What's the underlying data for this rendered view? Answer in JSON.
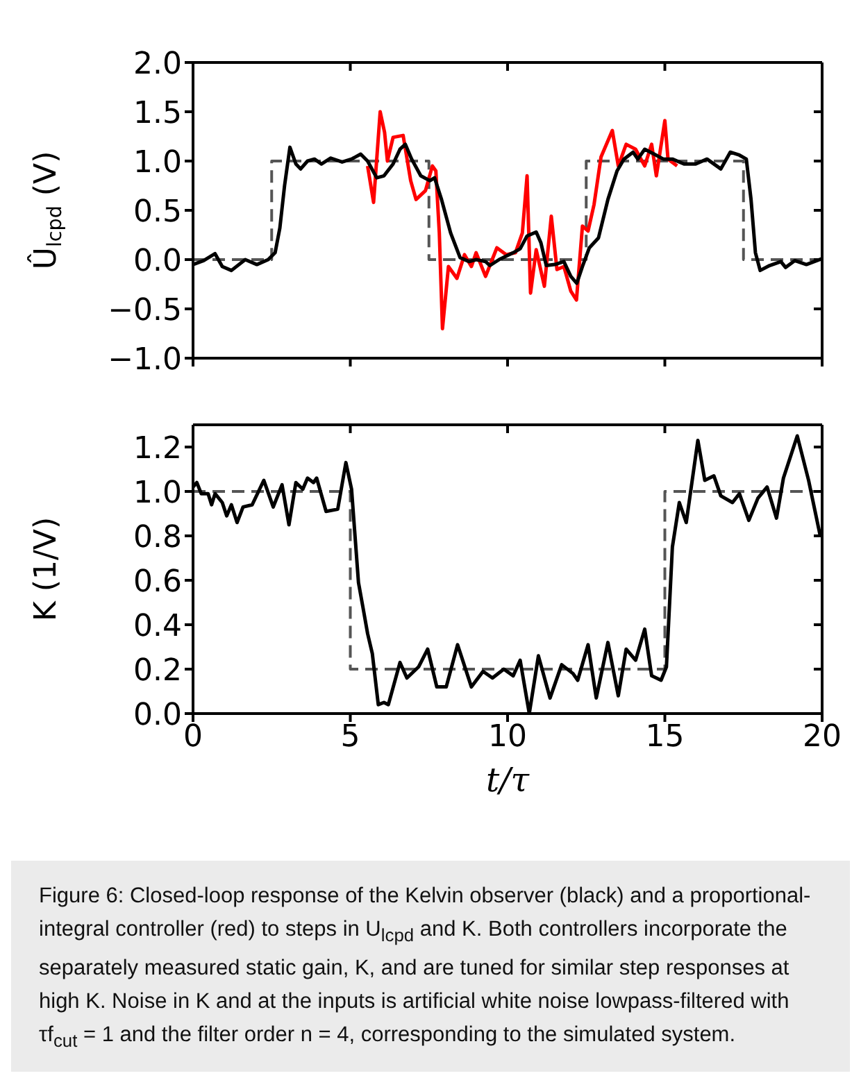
{
  "chart_data": [
    {
      "type": "line",
      "ylabel": "Û$_{lcpd}$ (V)",
      "xlim": [
        0,
        20
      ],
      "xticks": [
        {
          "value": 0,
          "label": null
        },
        {
          "value": 5,
          "label": null
        },
        {
          "value": 10,
          "label": null
        },
        {
          "value": 15,
          "label": null
        },
        {
          "value": 20,
          "label": null
        }
      ],
      "ylim": [
        -1,
        2
      ],
      "yticks": [
        {
          "value": -1,
          "label": "−1.0"
        },
        {
          "value": -0.5,
          "label": "−0.5"
        },
        {
          "value": 0,
          "label": "0.0"
        },
        {
          "value": 0.5,
          "label": "0.5"
        },
        {
          "value": 1,
          "label": "1.0"
        },
        {
          "value": 1.5,
          "label": "1.5"
        },
        {
          "value": 2,
          "label": "2.0"
        }
      ],
      "tick_labels": "y",
      "series": [
        {
          "type": "step",
          "color": "#555555",
          "line_style": "dashed",
          "x": [
            0,
            2.5,
            7.5,
            12.5,
            17.5,
            20
          ],
          "values": [
            0,
            1,
            0,
            1,
            0,
            0
          ]
        },
        {
          "color": "#ff0000",
          "line_style": "solid",
          "x": [
            5.55,
            5.74,
            5.95,
            6.09,
            6.18,
            6.36,
            6.68,
            6.92,
            7.09,
            7.39,
            7.61,
            7.72,
            7.83,
            7.93,
            8.12,
            8.39,
            8.63,
            8.85,
            9.0,
            9.3,
            9.66,
            9.96,
            10.25,
            10.47,
            10.62,
            10.73,
            10.91,
            11.17,
            11.39,
            11.57,
            11.79,
            12.01,
            12.19,
            12.38,
            12.56,
            12.75,
            12.97,
            13.33,
            13.52,
            13.77,
            14.07,
            14.36,
            14.58,
            14.73,
            15.0,
            15.1,
            15.39
          ],
          "values": [
            0.95,
            0.58,
            1.5,
            1.29,
            1.0,
            1.24,
            1.26,
            0.8,
            0.61,
            0.7,
            0.95,
            0.9,
            0.27,
            -0.7,
            -0.07,
            -0.19,
            0.05,
            -0.07,
            0.07,
            -0.17,
            0.12,
            0.05,
            0.07,
            0.27,
            0.85,
            -0.34,
            0.1,
            -0.27,
            0.44,
            -0.1,
            -0.07,
            -0.32,
            -0.41,
            0.34,
            0.29,
            0.56,
            1.04,
            1.31,
            0.95,
            1.17,
            1.12,
            0.95,
            1.17,
            0.85,
            1.41,
            1.02,
            0.95
          ]
        },
        {
          "color": "#000000",
          "line_style": "solid",
          "x": [
            0,
            0.34,
            0.7,
            0.93,
            1.22,
            1.66,
            2.03,
            2.39,
            2.61,
            2.76,
            2.91,
            3.08,
            3.27,
            3.42,
            3.64,
            3.86,
            4.08,
            4.38,
            4.74,
            5.04,
            5.33,
            5.55,
            5.84,
            6.07,
            6.36,
            6.58,
            6.75,
            6.95,
            7.24,
            7.53,
            7.68,
            7.9,
            8.19,
            8.49,
            8.78,
            9.0,
            9.3,
            9.44,
            9.73,
            10.18,
            10.4,
            10.62,
            10.91,
            11.06,
            11.23,
            11.5,
            11.79,
            12.01,
            12.2,
            12.38,
            12.6,
            12.89,
            13.19,
            13.48,
            13.7,
            13.99,
            14.14,
            14.36,
            14.66,
            14.95,
            15.24,
            15.61,
            15.98,
            16.34,
            16.78,
            17.08,
            17.37,
            17.59,
            17.74,
            17.88,
            18.03,
            18.33,
            18.69,
            18.84,
            19.13,
            19.5,
            20
          ],
          "values": [
            -0.05,
            -0.01,
            0.06,
            -0.07,
            -0.11,
            0,
            -0.05,
            0,
            0.07,
            0.32,
            0.75,
            1.14,
            0.97,
            0.92,
            1.0,
            1.02,
            0.97,
            1.03,
            0.99,
            1.02,
            1.07,
            1.0,
            0.83,
            0.85,
            0.97,
            1.12,
            1.17,
            1.02,
            0.85,
            0.8,
            0.83,
            0.61,
            0.27,
            0.02,
            -0.02,
            0,
            -0.02,
            -0.06,
            0,
            0.07,
            0.11,
            0.24,
            0.28,
            0.17,
            -0.06,
            -0.05,
            -0.02,
            -0.17,
            -0.24,
            -0.07,
            0.12,
            0.22,
            0.61,
            0.9,
            1.02,
            1.09,
            1.02,
            1.12,
            1.07,
            1.02,
            1.02,
            0.97,
            0.97,
            1.02,
            0.92,
            1.09,
            1.06,
            1.02,
            0.61,
            0.07,
            -0.11,
            -0.06,
            -0.02,
            -0.08,
            -0.01,
            -0.05,
            0.01
          ]
        }
      ]
    },
    {
      "type": "line",
      "xlabel": "t/τ",
      "ylabel": "K (1/V)",
      "xlim": [
        0,
        20
      ],
      "xticks": [
        0,
        5,
        10,
        15,
        20
      ],
      "ylim": [
        0,
        1.3
      ],
      "yticks": [
        {
          "value": 0,
          "label": "0.0"
        },
        {
          "value": 0.2,
          "label": "0.2"
        },
        {
          "value": 0.4,
          "label": "0.4"
        },
        {
          "value": 0.6,
          "label": "0.6"
        },
        {
          "value": 0.8,
          "label": "0.8"
        },
        {
          "value": 1,
          "label": "1.0"
        },
        {
          "value": 1.2,
          "label": "1.2"
        }
      ],
      "annotations": [
        "Figure 6: Closed-loop response of the Kelvin observer (black) and a proportional-integral controller (red) to steps in U$_{lcpd}$ and K. Both controllers incorporate the separately measured static gain, K, and are tuned for similar step responses at high K. Noise in K and at the inputs is artificial white noise lowpass-filtered with τf$_{cut}$ = 1 and the filter order n = 4, corresponding to the simulated system."
      ],
      "series": [
        {
          "type": "step",
          "color": "#555555",
          "line_style": "dashed",
          "x": [
            0,
            5,
            15,
            20
          ],
          "values": [
            1,
            0.2,
            1,
            1
          ]
        },
        {
          "color": "#000000",
          "line_style": "solid",
          "x": [
            0,
            0.12,
            0.26,
            0.48,
            0.59,
            0.7,
            0.93,
            1.07,
            1.22,
            1.4,
            1.59,
            1.88,
            2.25,
            2.55,
            2.83,
            3.05,
            3.27,
            3.49,
            3.64,
            3.83,
            3.93,
            4.23,
            4.6,
            4.86,
            5.04,
            5.26,
            5.4,
            5.55,
            5.7,
            5.89,
            6.07,
            6.21,
            6.58,
            6.8,
            7.17,
            7.46,
            7.75,
            8.05,
            8.41,
            8.85,
            9.22,
            9.52,
            9.88,
            10.18,
            10.4,
            10.69,
            10.98,
            11.35,
            11.72,
            12.08,
            12.23,
            12.56,
            12.82,
            13.19,
            13.52,
            13.77,
            14.07,
            14.36,
            14.58,
            14.88,
            15.05,
            15.24,
            15.46,
            15.68,
            16.05,
            16.27,
            16.56,
            16.78,
            17.15,
            17.37,
            17.67,
            17.96,
            18.25,
            18.55,
            18.77,
            19.21,
            19.57,
            19.94
          ],
          "values": [
            1.02,
            1.04,
            0.99,
            0.99,
            0.94,
            0.99,
            0.95,
            0.89,
            0.94,
            0.86,
            0.93,
            0.94,
            1.05,
            0.93,
            1.03,
            0.85,
            1.04,
            1.01,
            1.06,
            1.04,
            1.06,
            0.91,
            0.92,
            1.13,
            1.01,
            0.59,
            0.48,
            0.36,
            0.27,
            0.04,
            0.05,
            0.04,
            0.23,
            0.16,
            0.21,
            0.29,
            0.12,
            0.12,
            0.31,
            0.12,
            0.19,
            0.16,
            0.2,
            0.17,
            0.24,
            0,
            0.26,
            0.07,
            0.22,
            0.18,
            0.15,
            0.31,
            0.07,
            0.32,
            0.08,
            0.29,
            0.24,
            0.38,
            0.17,
            0.15,
            0.21,
            0.75,
            0.95,
            0.86,
            1.23,
            1.05,
            1.07,
            0.98,
            0.95,
            0.99,
            0.87,
            0.97,
            1.02,
            0.88,
            1.06,
            1.25,
            1.05,
            0.8
          ]
        }
      ]
    }
  ]
}
